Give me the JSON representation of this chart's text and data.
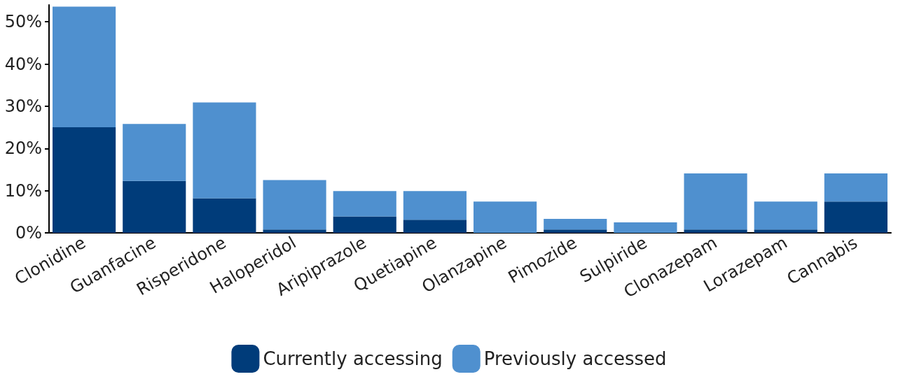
{
  "chart_data": {
    "type": "bar",
    "stacked": true,
    "categories": [
      "Clonidine",
      "Guanfacine",
      "Risperidone",
      "Haloperidol",
      "Aripiprazole",
      "Quetiapine",
      "Olanzapine",
      "Pimozide",
      "Sulpiride",
      "Clonazepam",
      "Lorazepam",
      "Cannabis"
    ],
    "series": [
      {
        "name": "Currently accessing",
        "color": "#003c7a",
        "values": [
          25,
          12.3,
          8.2,
          0.8,
          3.9,
          3.1,
          0,
          0.8,
          0,
          0.8,
          0.8,
          7.4
        ]
      },
      {
        "name": "Previously accessed",
        "color": "#4f90cf",
        "values": [
          28.6,
          13.5,
          22.7,
          11.7,
          6.0,
          6.8,
          7.4,
          2.5,
          2.5,
          13.3,
          6.6,
          6.7
        ]
      }
    ],
    "ylim": [
      0,
      54
    ],
    "yticks": [
      {
        "value": 0,
        "label": "0%"
      },
      {
        "value": 10,
        "label": "10%"
      },
      {
        "value": 20,
        "label": "20%"
      },
      {
        "value": 30,
        "label": "30%"
      },
      {
        "value": 40,
        "label": "40%"
      },
      {
        "value": 50,
        "label": "50%"
      }
    ],
    "grid": false,
    "legend": "bottom"
  }
}
